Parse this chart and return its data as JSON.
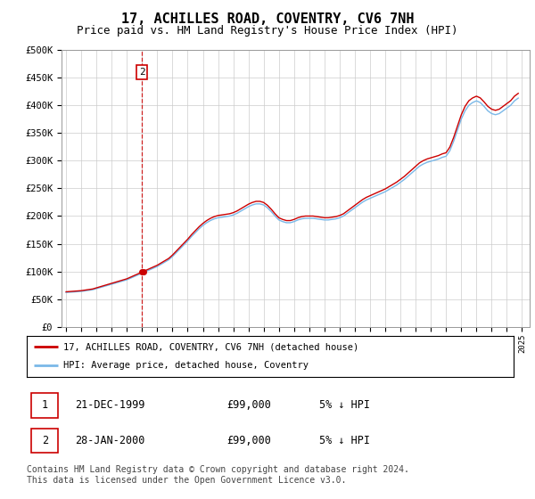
{
  "title": "17, ACHILLES ROAD, COVENTRY, CV6 7NH",
  "subtitle": "Price paid vs. HM Land Registry's House Price Index (HPI)",
  "title_fontsize": 11,
  "subtitle_fontsize": 9,
  "hpi_color": "#7ab8e8",
  "sale_color": "#cc0000",
  "marker_color": "#cc0000",
  "dashed_line_color": "#cc0000",
  "annotation_box_color": "#cc0000",
  "grid_color": "#cccccc",
  "background_color": "#ffffff",
  "ylabel_ticks": [
    "£0",
    "£50K",
    "£100K",
    "£150K",
    "£200K",
    "£250K",
    "£300K",
    "£350K",
    "£400K",
    "£450K",
    "£500K"
  ],
  "ytick_values": [
    0,
    50000,
    100000,
    150000,
    200000,
    250000,
    300000,
    350000,
    400000,
    450000,
    500000
  ],
  "ylim": [
    0,
    500000
  ],
  "xlim_start": 1994.7,
  "xlim_end": 2025.5,
  "xtick_years": [
    1995,
    1996,
    1997,
    1998,
    1999,
    2000,
    2001,
    2002,
    2003,
    2004,
    2005,
    2006,
    2007,
    2008,
    2009,
    2010,
    2011,
    2012,
    2013,
    2014,
    2015,
    2016,
    2017,
    2018,
    2019,
    2020,
    2021,
    2022,
    2023,
    2024,
    2025
  ],
  "sale_dates": [
    1999.97,
    2000.07
  ],
  "sale_prices": [
    99000,
    99000
  ],
  "legend_entries": [
    "17, ACHILLES ROAD, COVENTRY, CV6 7NH (detached house)",
    "HPI: Average price, detached house, Coventry"
  ],
  "table_rows": [
    {
      "num": "1",
      "date": "21-DEC-1999",
      "price": "£99,000",
      "hpi_note": "5% ↓ HPI"
    },
    {
      "num": "2",
      "date": "28-JAN-2000",
      "price": "£99,000",
      "hpi_note": "5% ↓ HPI"
    }
  ],
  "footer": "Contains HM Land Registry data © Crown copyright and database right 2024.\nThis data is licensed under the Open Government Licence v3.0.",
  "hpi_data_x": [
    1995.0,
    1995.25,
    1995.5,
    1995.75,
    1996.0,
    1996.25,
    1996.5,
    1996.75,
    1997.0,
    1997.25,
    1997.5,
    1997.75,
    1998.0,
    1998.25,
    1998.5,
    1998.75,
    1999.0,
    1999.25,
    1999.5,
    1999.75,
    2000.0,
    2000.25,
    2000.5,
    2000.75,
    2001.0,
    2001.25,
    2001.5,
    2001.75,
    2002.0,
    2002.25,
    2002.5,
    2002.75,
    2003.0,
    2003.25,
    2003.5,
    2003.75,
    2004.0,
    2004.25,
    2004.5,
    2004.75,
    2005.0,
    2005.25,
    2005.5,
    2005.75,
    2006.0,
    2006.25,
    2006.5,
    2006.75,
    2007.0,
    2007.25,
    2007.5,
    2007.75,
    2008.0,
    2008.25,
    2008.5,
    2008.75,
    2009.0,
    2009.25,
    2009.5,
    2009.75,
    2010.0,
    2010.25,
    2010.5,
    2010.75,
    2011.0,
    2011.25,
    2011.5,
    2011.75,
    2012.0,
    2012.25,
    2012.5,
    2012.75,
    2013.0,
    2013.25,
    2013.5,
    2013.75,
    2014.0,
    2014.25,
    2014.5,
    2014.75,
    2015.0,
    2015.25,
    2015.5,
    2015.75,
    2016.0,
    2016.25,
    2016.5,
    2016.75,
    2017.0,
    2017.25,
    2017.5,
    2017.75,
    2018.0,
    2018.25,
    2018.5,
    2018.75,
    2019.0,
    2019.25,
    2019.5,
    2019.75,
    2020.0,
    2020.25,
    2020.5,
    2020.75,
    2021.0,
    2021.25,
    2021.5,
    2021.75,
    2022.0,
    2022.25,
    2022.5,
    2022.75,
    2023.0,
    2023.25,
    2023.5,
    2023.75,
    2024.0,
    2024.25,
    2024.5,
    2024.75
  ],
  "hpi_data_y": [
    62000,
    62500,
    63000,
    63500,
    64000,
    65000,
    66000,
    67000,
    69000,
    71000,
    73000,
    75000,
    77000,
    79000,
    81000,
    83000,
    85000,
    88000,
    91000,
    94000,
    97000,
    100000,
    103000,
    106000,
    109000,
    113000,
    117000,
    121000,
    127000,
    134000,
    141000,
    148000,
    155000,
    163000,
    170000,
    177000,
    183000,
    188000,
    192000,
    195000,
    197000,
    198000,
    199000,
    200000,
    202000,
    205000,
    209000,
    213000,
    217000,
    220000,
    222000,
    222000,
    220000,
    215000,
    208000,
    200000,
    193000,
    190000,
    188000,
    188000,
    190000,
    193000,
    195000,
    196000,
    196000,
    196000,
    195000,
    194000,
    193000,
    193000,
    194000,
    195000,
    197000,
    200000,
    205000,
    210000,
    215000,
    220000,
    225000,
    229000,
    232000,
    235000,
    238000,
    241000,
    244000,
    248000,
    252000,
    256000,
    261000,
    266000,
    272000,
    278000,
    284000,
    290000,
    294000,
    297000,
    299000,
    301000,
    303000,
    306000,
    308000,
    318000,
    335000,
    355000,
    375000,
    390000,
    400000,
    405000,
    408000,
    405000,
    398000,
    390000,
    385000,
    383000,
    385000,
    390000,
    395000,
    400000,
    408000,
    413000
  ]
}
